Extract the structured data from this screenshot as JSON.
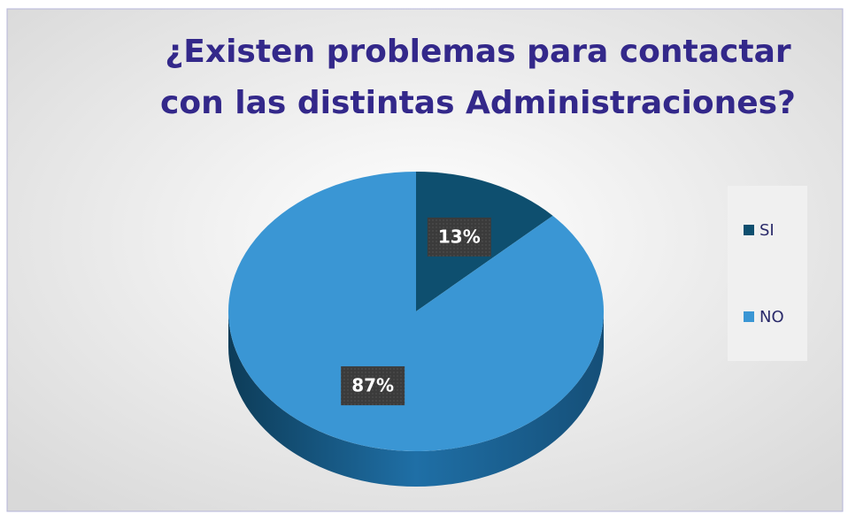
{
  "chart_data": {
    "type": "pie",
    "title": "¿Existen problemas para contactar con las distintas Administraciones?",
    "categories": [
      "SI",
      "NO"
    ],
    "values": [
      13,
      87
    ],
    "value_labels": [
      "13%",
      "87%"
    ],
    "colors": [
      "#0e4f6f",
      "#3a96d4"
    ],
    "legend": "right"
  }
}
